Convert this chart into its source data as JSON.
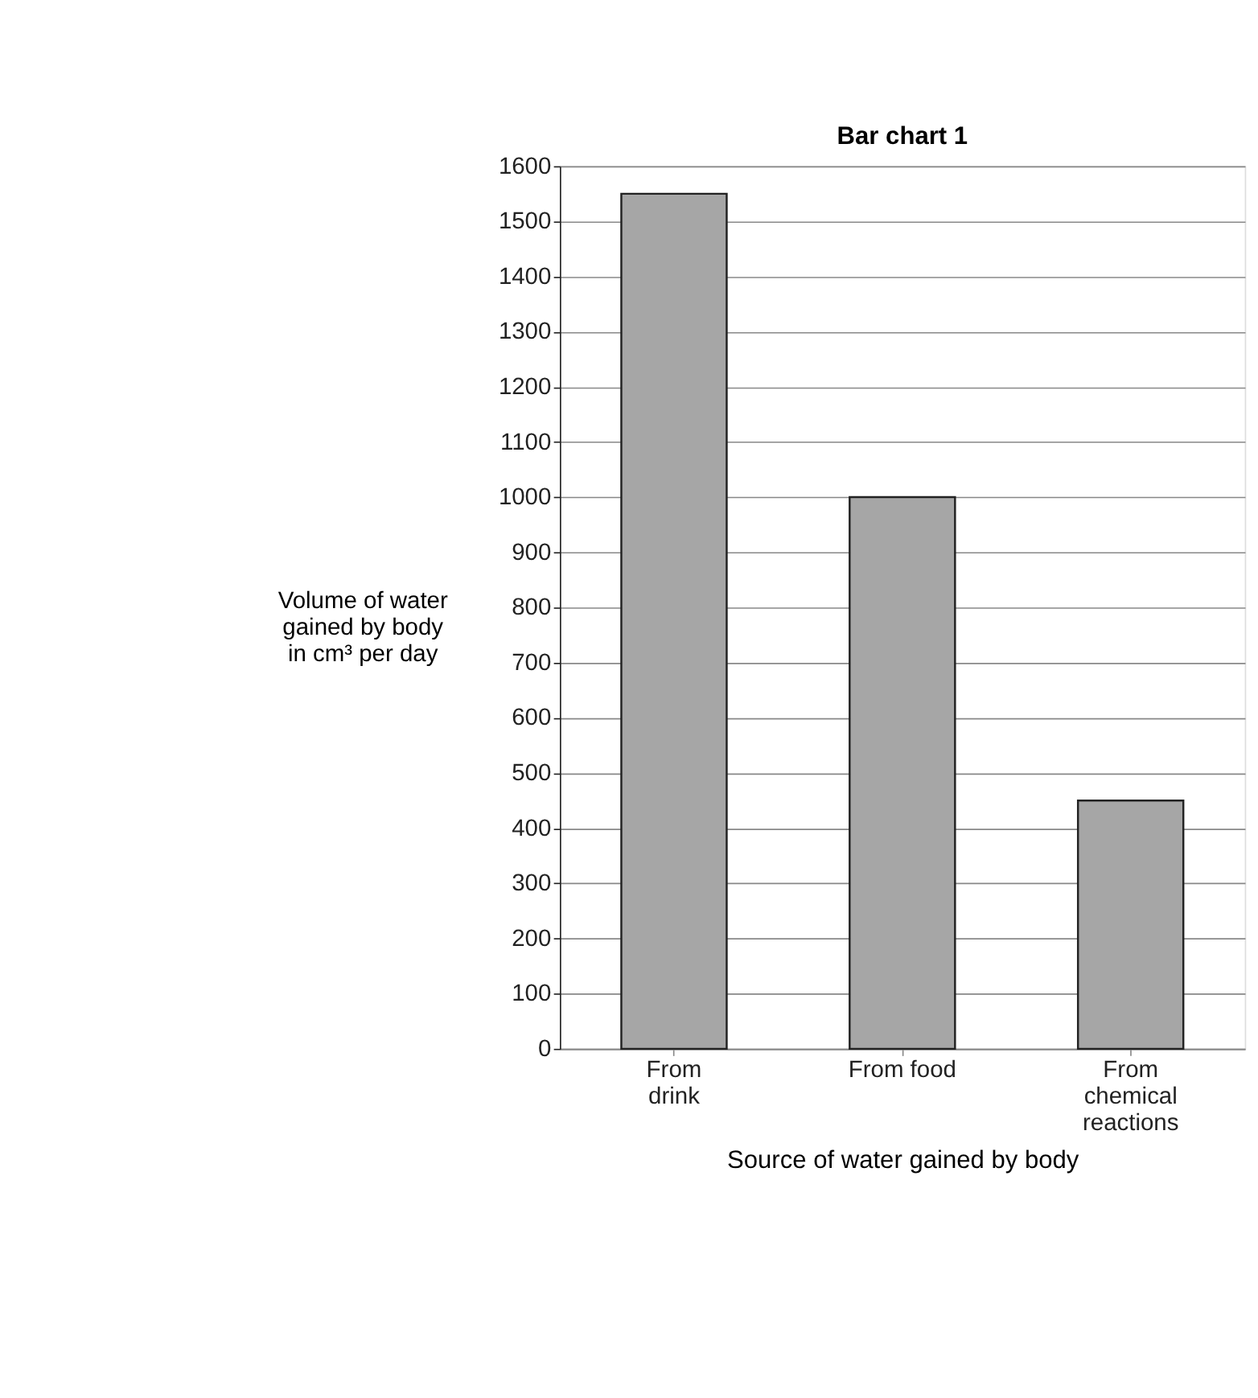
{
  "chart_data": {
    "type": "bar",
    "title": "Bar chart 1",
    "categories": [
      "From drink",
      "From food",
      "From chemical reactions"
    ],
    "values": [
      1550,
      1000,
      450
    ],
    "color": "#a6a6a6",
    "xlabel": "Source of water gained by body",
    "ylabel": "Volume of water gained by body in cm³ per day",
    "ylim": [
      0,
      1600
    ],
    "yticks": [
      0,
      100,
      200,
      300,
      400,
      500,
      600,
      700,
      800,
      900,
      1000,
      1100,
      1200,
      1300,
      1400,
      1500,
      1600
    ],
    "grid": "y"
  }
}
